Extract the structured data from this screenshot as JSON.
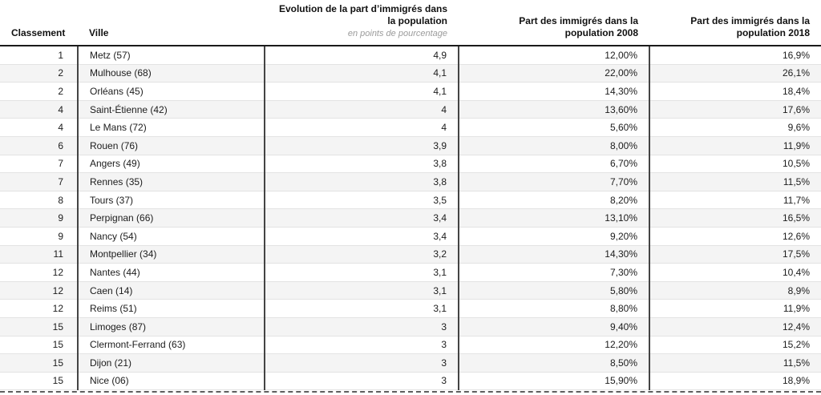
{
  "colors": {
    "stripe_row": "#f4f4f4",
    "header_rule": "#1a1a1a",
    "column_divider": "#444444",
    "row_separator": "#e3e3e3",
    "subtitle_text": "#9b9b9b",
    "body_text": "#1c1c1c"
  },
  "chart_data": {
    "type": "table",
    "columns": {
      "classement": "Classement",
      "ville": "Ville",
      "evolution_line1": "Evolution de la part d’immigrés dans",
      "evolution_line2": "la population",
      "evolution_subtitle": "en points de pourcentage",
      "p2008_line1": "Part des immigrés dans la",
      "p2008_line2": "population 2008",
      "p2018_line1": "Part des immigrés dans la",
      "p2018_line2": "population 2018"
    },
    "rows": [
      {
        "rank": "1",
        "ville": "Metz (57)",
        "evolution": "4,9",
        "part_2008": "12,00%",
        "part_2018": "16,9%"
      },
      {
        "rank": "2",
        "ville": "Mulhouse (68)",
        "evolution": "4,1",
        "part_2008": "22,00%",
        "part_2018": "26,1%"
      },
      {
        "rank": "2",
        "ville": "Orléans (45)",
        "evolution": "4,1",
        "part_2008": "14,30%",
        "part_2018": "18,4%"
      },
      {
        "rank": "4",
        "ville": "Saint-Étienne (42)",
        "evolution": "4",
        "part_2008": "13,60%",
        "part_2018": "17,6%"
      },
      {
        "rank": "4",
        "ville": "Le Mans (72)",
        "evolution": "4",
        "part_2008": "5,60%",
        "part_2018": "9,6%"
      },
      {
        "rank": "6",
        "ville": "Rouen (76)",
        "evolution": "3,9",
        "part_2008": "8,00%",
        "part_2018": "11,9%"
      },
      {
        "rank": "7",
        "ville": "Angers (49)",
        "evolution": "3,8",
        "part_2008": "6,70%",
        "part_2018": "10,5%"
      },
      {
        "rank": "7",
        "ville": "Rennes (35)",
        "evolution": "3,8",
        "part_2008": "7,70%",
        "part_2018": "11,5%"
      },
      {
        "rank": "8",
        "ville": "Tours (37)",
        "evolution": "3,5",
        "part_2008": "8,20%",
        "part_2018": "11,7%"
      },
      {
        "rank": "9",
        "ville": "Perpignan (66)",
        "evolution": "3,4",
        "part_2008": "13,10%",
        "part_2018": "16,5%"
      },
      {
        "rank": "9",
        "ville": "Nancy (54)",
        "evolution": "3,4",
        "part_2008": "9,20%",
        "part_2018": "12,6%"
      },
      {
        "rank": "11",
        "ville": "Montpellier (34)",
        "evolution": "3,2",
        "part_2008": "14,30%",
        "part_2018": "17,5%"
      },
      {
        "rank": "12",
        "ville": "Nantes (44)",
        "evolution": "3,1",
        "part_2008": "7,30%",
        "part_2018": "10,4%"
      },
      {
        "rank": "12",
        "ville": "Caen (14)",
        "evolution": "3,1",
        "part_2008": "5,80%",
        "part_2018": "8,9%"
      },
      {
        "rank": "12",
        "ville": "Reims (51)",
        "evolution": "3,1",
        "part_2008": "8,80%",
        "part_2018": "11,9%"
      },
      {
        "rank": "15",
        "ville": "Limoges (87)",
        "evolution": "3",
        "part_2008": "9,40%",
        "part_2018": "12,4%"
      },
      {
        "rank": "15",
        "ville": "Clermont-Ferrand (63)",
        "evolution": "3",
        "part_2008": "12,20%",
        "part_2018": "15,2%"
      },
      {
        "rank": "15",
        "ville": "Dijon (21)",
        "evolution": "3",
        "part_2008": "8,50%",
        "part_2018": "11,5%"
      },
      {
        "rank": "15",
        "ville": "Nice (06)",
        "evolution": "3",
        "part_2008": "15,90%",
        "part_2018": "18,9%"
      }
    ]
  }
}
